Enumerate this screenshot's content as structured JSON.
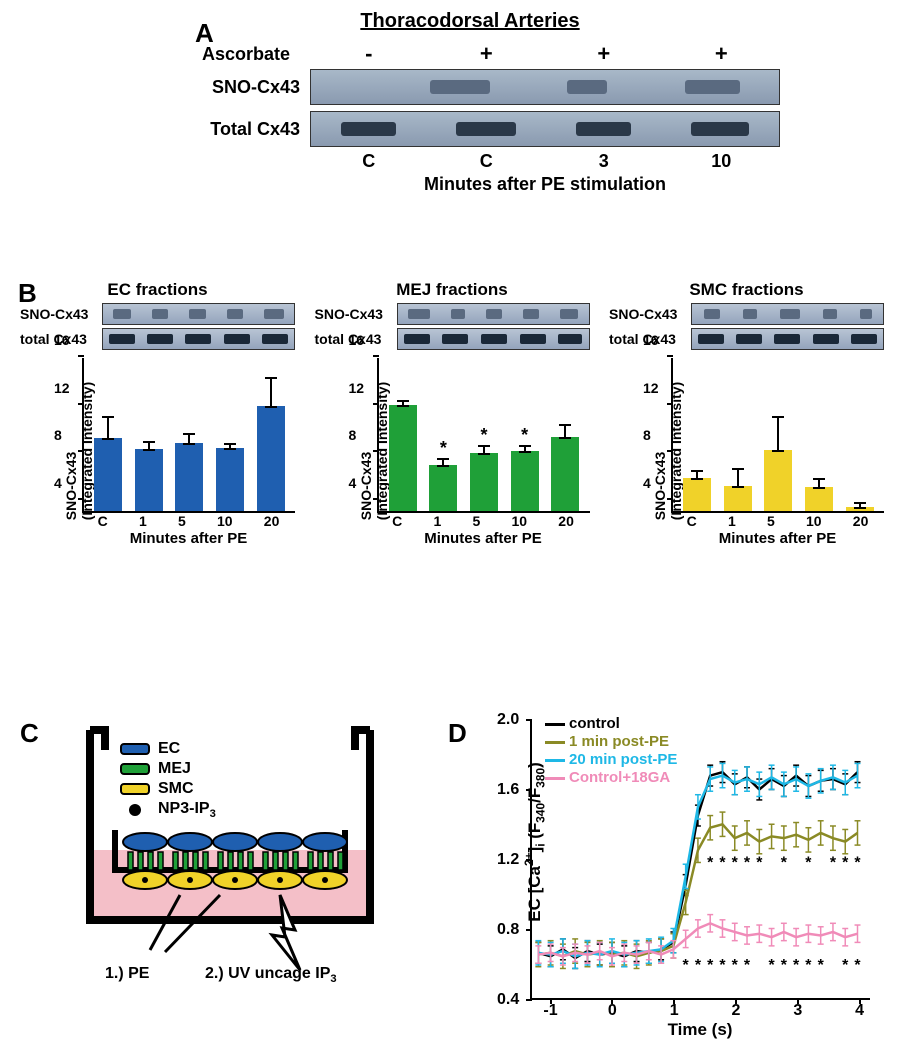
{
  "panelLabels": {
    "A": "A",
    "B": "B",
    "C": "C",
    "D": "D"
  },
  "panelA": {
    "title": "Thoracodorsal Arteries",
    "ascorbate_label": "Ascorbate",
    "ascorbate_marks": [
      "-",
      "+",
      "+",
      "+"
    ],
    "row1_label": "SNO-Cx43",
    "row2_label": "Total Cx43",
    "lanes": [
      "C",
      "C",
      "3",
      "10"
    ],
    "x_caption": "Minutes after PE stimulation",
    "blot_bg": "#9aaabf",
    "band_color_dark": "#2a3848",
    "band_color_light": "#5a6a80",
    "sno_band_widths": [
      2,
      60,
      40,
      55
    ],
    "total_band_widths": [
      55,
      60,
      55,
      58
    ]
  },
  "panelB": {
    "y_ticks": [
      4,
      8,
      12,
      16
    ],
    "y_max": 16,
    "y_min": 3,
    "x_ticks": [
      "C",
      "1",
      "5",
      "10",
      "20"
    ],
    "x_label": "Minutes after PE",
    "y_label": "SNO-Cx43\n(Integrated Intensity)",
    "row1_label": "SNO-Cx43",
    "row2_label": "total Cx43",
    "subs": [
      {
        "title": "EC fractions",
        "color": "#1f5fb0",
        "values": [
          9.1,
          8.2,
          8.7,
          8.3,
          11.8
        ],
        "err": [
          2.0,
          0.8,
          1.0,
          0.6,
          2.6
        ],
        "stars": [
          false,
          false,
          false,
          false,
          false
        ],
        "sno_bands": [
          18,
          16,
          17,
          16,
          20
        ],
        "tot_bands": [
          26,
          26,
          26,
          26,
          26
        ]
      },
      {
        "title": "MEJ fractions",
        "color": "#1fa038",
        "values": [
          11.9,
          6.9,
          7.9,
          8.0,
          9.2
        ],
        "err": [
          0.6,
          0.7,
          0.8,
          0.7,
          1.3
        ],
        "stars": [
          false,
          true,
          true,
          true,
          false
        ],
        "sno_bands": [
          22,
          14,
          16,
          16,
          18
        ],
        "tot_bands": [
          26,
          26,
          26,
          26,
          24
        ]
      },
      {
        "title": "SMC fractions",
        "color": "#f0d229",
        "values": [
          5.8,
          5.1,
          8.1,
          5.0,
          3.3
        ],
        "err": [
          0.8,
          1.7,
          3.0,
          0.9,
          0.6
        ],
        "stars": [
          false,
          false,
          false,
          false,
          false
        ],
        "sno_bands": [
          16,
          14,
          20,
          14,
          12
        ],
        "tot_bands": [
          26,
          26,
          26,
          26,
          26
        ]
      }
    ]
  },
  "panelC": {
    "legend": [
      {
        "label": "EC",
        "color": "#1f5fb0"
      },
      {
        "label": "MEJ",
        "color": "#1fa038"
      },
      {
        "label": "SMC",
        "color": "#f0d229"
      }
    ],
    "np3_label": "NP3-IP",
    "np3_sub": "3",
    "annot1": "1.) PE",
    "annot2": "2.) UV uncage IP",
    "annot2_sub": "3",
    "medium_color": "#f4bfc8",
    "flask_line": "#000000"
  },
  "panelD": {
    "y_label": "EC [Ca²⁺]ᵢ (F₃₄₀/F₃₈₀)",
    "x_label": "Time (s)",
    "y_ticks": [
      0.4,
      0.8,
      1.2,
      1.6,
      2.0
    ],
    "y_min": 0.4,
    "y_max": 2.0,
    "x_ticks": [
      -1,
      0,
      1,
      2,
      3,
      4
    ],
    "x_min": -1.3,
    "x_max": 4.2,
    "legend": [
      {
        "label": "control",
        "color": "#000000"
      },
      {
        "label": "1 min post-PE",
        "color": "#8a8a25"
      },
      {
        "label": "20 min post-PE",
        "color": "#1eb8e6"
      },
      {
        "label": "Control+18GA",
        "color": "#f08bb8"
      }
    ],
    "series": {
      "control": {
        "color": "#000000",
        "points": [
          [
            -1.2,
            0.66
          ],
          [
            -1.0,
            0.64
          ],
          [
            -0.8,
            0.68
          ],
          [
            -0.6,
            0.63
          ],
          [
            -0.4,
            0.67
          ],
          [
            -0.2,
            0.65
          ],
          [
            0,
            0.66
          ],
          [
            0.2,
            0.64
          ],
          [
            0.4,
            0.67
          ],
          [
            0.6,
            0.66
          ],
          [
            0.8,
            0.68
          ],
          [
            1.0,
            0.72
          ],
          [
            1.2,
            1.05
          ],
          [
            1.4,
            1.45
          ],
          [
            1.6,
            1.68
          ],
          [
            1.8,
            1.7
          ],
          [
            2.0,
            1.63
          ],
          [
            2.2,
            1.67
          ],
          [
            2.4,
            1.6
          ],
          [
            2.6,
            1.66
          ],
          [
            2.8,
            1.62
          ],
          [
            3.0,
            1.68
          ],
          [
            3.2,
            1.62
          ],
          [
            3.4,
            1.65
          ],
          [
            3.6,
            1.66
          ],
          [
            3.8,
            1.63
          ],
          [
            4.0,
            1.7
          ]
        ],
        "err": 0.06
      },
      "post1": {
        "color": "#8a8a25",
        "points": [
          [
            -1.2,
            0.65
          ],
          [
            -1.0,
            0.66
          ],
          [
            -0.8,
            0.64
          ],
          [
            -0.6,
            0.67
          ],
          [
            -0.4,
            0.65
          ],
          [
            -0.2,
            0.66
          ],
          [
            0,
            0.65
          ],
          [
            0.2,
            0.66
          ],
          [
            0.4,
            0.64
          ],
          [
            0.6,
            0.66
          ],
          [
            0.8,
            0.67
          ],
          [
            1.0,
            0.7
          ],
          [
            1.2,
            0.95
          ],
          [
            1.4,
            1.25
          ],
          [
            1.6,
            1.38
          ],
          [
            1.8,
            1.4
          ],
          [
            2.0,
            1.32
          ],
          [
            2.2,
            1.35
          ],
          [
            2.4,
            1.3
          ],
          [
            2.6,
            1.33
          ],
          [
            2.8,
            1.32
          ],
          [
            3.0,
            1.34
          ],
          [
            3.2,
            1.31
          ],
          [
            3.4,
            1.35
          ],
          [
            3.6,
            1.32
          ],
          [
            3.8,
            1.3
          ],
          [
            4.0,
            1.35
          ]
        ],
        "err": 0.07
      },
      "post20": {
        "color": "#1eb8e6",
        "points": [
          [
            -1.2,
            0.66
          ],
          [
            -1.0,
            0.65
          ],
          [
            -0.8,
            0.67
          ],
          [
            -0.6,
            0.64
          ],
          [
            -0.4,
            0.66
          ],
          [
            -0.2,
            0.65
          ],
          [
            0,
            0.67
          ],
          [
            0.2,
            0.65
          ],
          [
            0.4,
            0.66
          ],
          [
            0.6,
            0.67
          ],
          [
            0.8,
            0.68
          ],
          [
            1.0,
            0.73
          ],
          [
            1.2,
            1.1
          ],
          [
            1.4,
            1.5
          ],
          [
            1.6,
            1.66
          ],
          [
            1.8,
            1.68
          ],
          [
            2.0,
            1.64
          ],
          [
            2.2,
            1.66
          ],
          [
            2.4,
            1.63
          ],
          [
            2.6,
            1.67
          ],
          [
            2.8,
            1.63
          ],
          [
            3.0,
            1.66
          ],
          [
            3.2,
            1.62
          ],
          [
            3.4,
            1.65
          ],
          [
            3.6,
            1.67
          ],
          [
            3.8,
            1.64
          ],
          [
            4.0,
            1.68
          ]
        ],
        "err": 0.07
      },
      "ga": {
        "color": "#f08bb8",
        "points": [
          [
            -1.2,
            0.65
          ],
          [
            -1.0,
            0.66
          ],
          [
            -0.8,
            0.64
          ],
          [
            -0.6,
            0.66
          ],
          [
            -0.4,
            0.65
          ],
          [
            -0.2,
            0.67
          ],
          [
            0,
            0.64
          ],
          [
            0.2,
            0.66
          ],
          [
            0.4,
            0.65
          ],
          [
            0.6,
            0.67
          ],
          [
            0.8,
            0.65
          ],
          [
            1.0,
            0.68
          ],
          [
            1.2,
            0.74
          ],
          [
            1.4,
            0.8
          ],
          [
            1.6,
            0.83
          ],
          [
            1.8,
            0.8
          ],
          [
            2.0,
            0.78
          ],
          [
            2.2,
            0.76
          ],
          [
            2.4,
            0.77
          ],
          [
            2.6,
            0.75
          ],
          [
            2.8,
            0.78
          ],
          [
            3.0,
            0.75
          ],
          [
            3.2,
            0.77
          ],
          [
            3.4,
            0.76
          ],
          [
            3.6,
            0.78
          ],
          [
            3.8,
            0.75
          ],
          [
            4.0,
            0.77
          ]
        ],
        "err": 0.05
      }
    },
    "stars_post1_x": [
      1.6,
      1.8,
      2.0,
      2.2,
      2.4,
      2.8,
      3.2,
      3.6,
      3.8,
      4.0
    ],
    "stars_ga_x": [
      1.2,
      1.4,
      1.6,
      1.8,
      2.0,
      2.2,
      2.6,
      2.8,
      3.0,
      3.2,
      3.4,
      3.8,
      4.0
    ]
  }
}
